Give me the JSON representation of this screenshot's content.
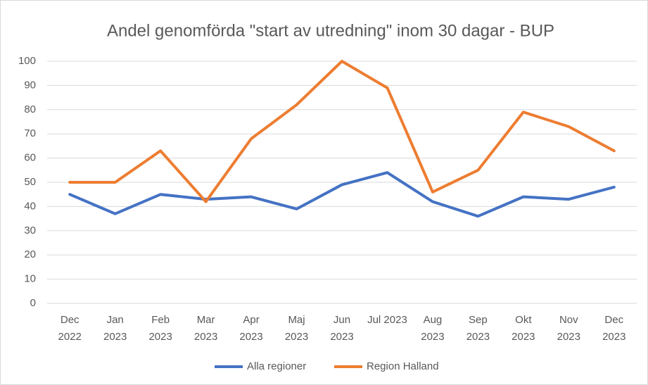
{
  "chart_data": {
    "type": "line",
    "title": "Andel genomförda \"start av utredning\" inom 30 dagar - BUP",
    "categories": [
      "Dec\n2022",
      "Jan\n2023",
      "Feb\n2023",
      "Mar\n2023",
      "Apr\n2023",
      "Maj\n2023",
      "Jun\n2023",
      "Jul 2023",
      "Aug\n2023",
      "Sep\n2023",
      "Okt\n2023",
      "Nov\n2023",
      "Dec\n2023"
    ],
    "series": [
      {
        "name": "Alla regioner",
        "color": "#4472c4",
        "values": [
          45,
          37,
          45,
          43,
          44,
          39,
          49,
          54,
          42,
          36,
          44,
          43,
          48
        ]
      },
      {
        "name": "Region Halland",
        "color": "#ed7d31",
        "values": [
          50,
          50,
          63,
          42,
          68,
          82,
          100,
          89,
          46,
          55,
          79,
          73,
          63
        ]
      }
    ],
    "ylim": [
      0,
      100
    ],
    "yticks": [
      0,
      10,
      20,
      30,
      40,
      50,
      60,
      70,
      80,
      90,
      100
    ],
    "grid": true,
    "legend": "bottom"
  }
}
